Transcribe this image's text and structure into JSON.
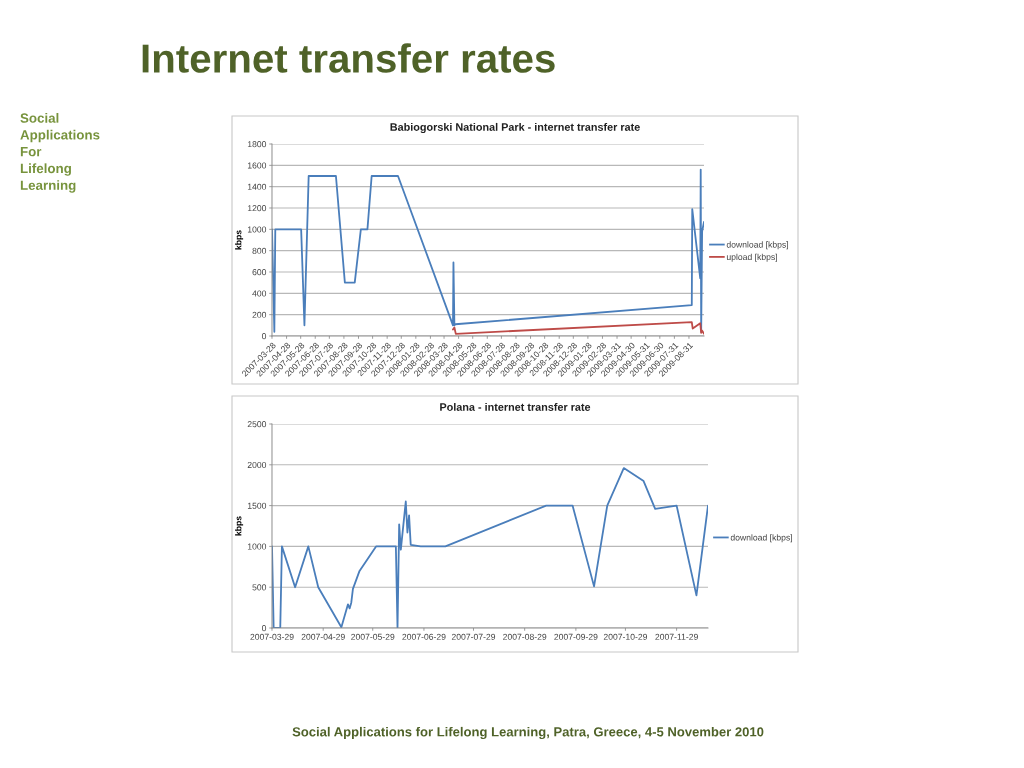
{
  "chart_data": [
    {
      "type": "other",
      "title": "Internet transfer rates",
      "annotations": [
        "Social\nApplications\nFor\nLifelong\nLearning",
        "Social Applications for Lifelong Learning, Patra, Greece, 4-5 November 2010"
      ]
    },
    {
      "type": "line",
      "title": "Babiogorski National Park - internet transfer rate",
      "ylabel": "kbps",
      "xlim": [
        "2007-03-28",
        "2009-10-02"
      ],
      "ylim": [
        0,
        1800
      ],
      "yticks": [
        0,
        200,
        400,
        600,
        800,
        1000,
        1200,
        1400,
        1600,
        1800
      ],
      "xticks": [
        "2007-03-28",
        "2007-04-28",
        "2007-05-28",
        "2007-06-28",
        "2007-07-28",
        "2007-08-28",
        "2007-09-28",
        "2007-10-28",
        "2007-11-28",
        "2007-12-28",
        "2008-01-28",
        "2008-02-28",
        "2008-03-28",
        "2008-04-28",
        "2008-05-28",
        "2008-06-28",
        "2008-07-28",
        "2008-08-28",
        "2008-09-28",
        "2008-10-28",
        "2008-11-28",
        "2008-12-28",
        "2009-01-28",
        "2009-02-28",
        "2009-03-31",
        "2009-04-30",
        "2009-05-31",
        "2009-06-30",
        "2009-07-31",
        "2009-08-31"
      ],
      "grid": "y",
      "legend": "right",
      "series": [
        {
          "name": "download [kbps]",
          "color": "#4a7ebb",
          "x": [
            "2007-03-28",
            "2007-04-02",
            "2007-04-04",
            "2007-05-29",
            "2007-06-05",
            "2007-06-14",
            "2007-08-11",
            "2007-08-30",
            "2007-09-20",
            "2007-10-03",
            "2007-10-17",
            "2007-10-26",
            "2007-12-21",
            "2008-04-16",
            "2008-04-17",
            "2008-04-19",
            "2008-04-21",
            "2009-09-06",
            "2009-09-07",
            "2009-09-24",
            "2009-09-25",
            "2009-09-26",
            "2009-09-28",
            "2009-10-02"
          ],
          "values": [
            1000,
            40,
            1000,
            1000,
            100,
            1500,
            1500,
            500,
            500,
            1000,
            1000,
            1500,
            1500,
            100,
            690,
            100,
            110,
            290,
            1190,
            540,
            1560,
            40,
            980,
            1070
          ]
        },
        {
          "name": "upload [kbps]",
          "color": "#be4b48",
          "x": [
            "2008-04-16",
            "2008-04-19",
            "2008-04-22",
            "2009-09-06",
            "2009-09-08",
            "2009-09-24",
            "2009-09-26",
            "2009-09-28",
            "2009-10-02"
          ],
          "values": [
            60,
            80,
            20,
            130,
            70,
            120,
            30,
            50,
            20
          ]
        }
      ]
    },
    {
      "type": "line",
      "title": "Polana - internet transfer rate",
      "ylabel": "kbps",
      "xlim": [
        "2007-03-29",
        "2007-12-18"
      ],
      "ylim": [
        0,
        2500
      ],
      "yticks": [
        0,
        500,
        1000,
        1500,
        2000,
        2500
      ],
      "xticks": [
        "2007-03-29",
        "2007-04-29",
        "2007-05-29",
        "2007-06-29",
        "2007-07-29",
        "2007-08-29",
        "2007-09-29",
        "2007-10-29",
        "2007-11-29"
      ],
      "grid": "y",
      "legend": "right",
      "series": [
        {
          "name": "download [kbps]",
          "color": "#4a7ebb",
          "x": [
            "2007-03-29",
            "2007-03-30",
            "2007-04-03",
            "2007-04-04",
            "2007-04-12",
            "2007-04-20",
            "2007-04-26",
            "2007-05-10",
            "2007-05-14",
            "2007-05-15",
            "2007-05-16",
            "2007-05-17",
            "2007-05-21",
            "2007-05-31",
            "2007-06-12",
            "2007-06-13",
            "2007-06-14",
            "2007-06-15",
            "2007-06-18",
            "2007-06-19",
            "2007-06-20",
            "2007-06-21",
            "2007-06-27",
            "2007-07-12",
            "2007-09-11",
            "2007-09-27",
            "2007-10-10",
            "2007-10-18",
            "2007-10-28",
            "2007-11-09",
            "2007-11-16",
            "2007-11-29",
            "2007-12-11",
            "2007-12-18"
          ],
          "values": [
            1000,
            0,
            0,
            1000,
            500,
            1000,
            500,
            10,
            290,
            240,
            310,
            480,
            700,
            1000,
            1000,
            0,
            1270,
            960,
            1550,
            1170,
            1380,
            1020,
            1000,
            1000,
            1500,
            1500,
            510,
            1500,
            1960,
            1800,
            1460,
            1500,
            400,
            1500
          ]
        }
      ]
    }
  ]
}
